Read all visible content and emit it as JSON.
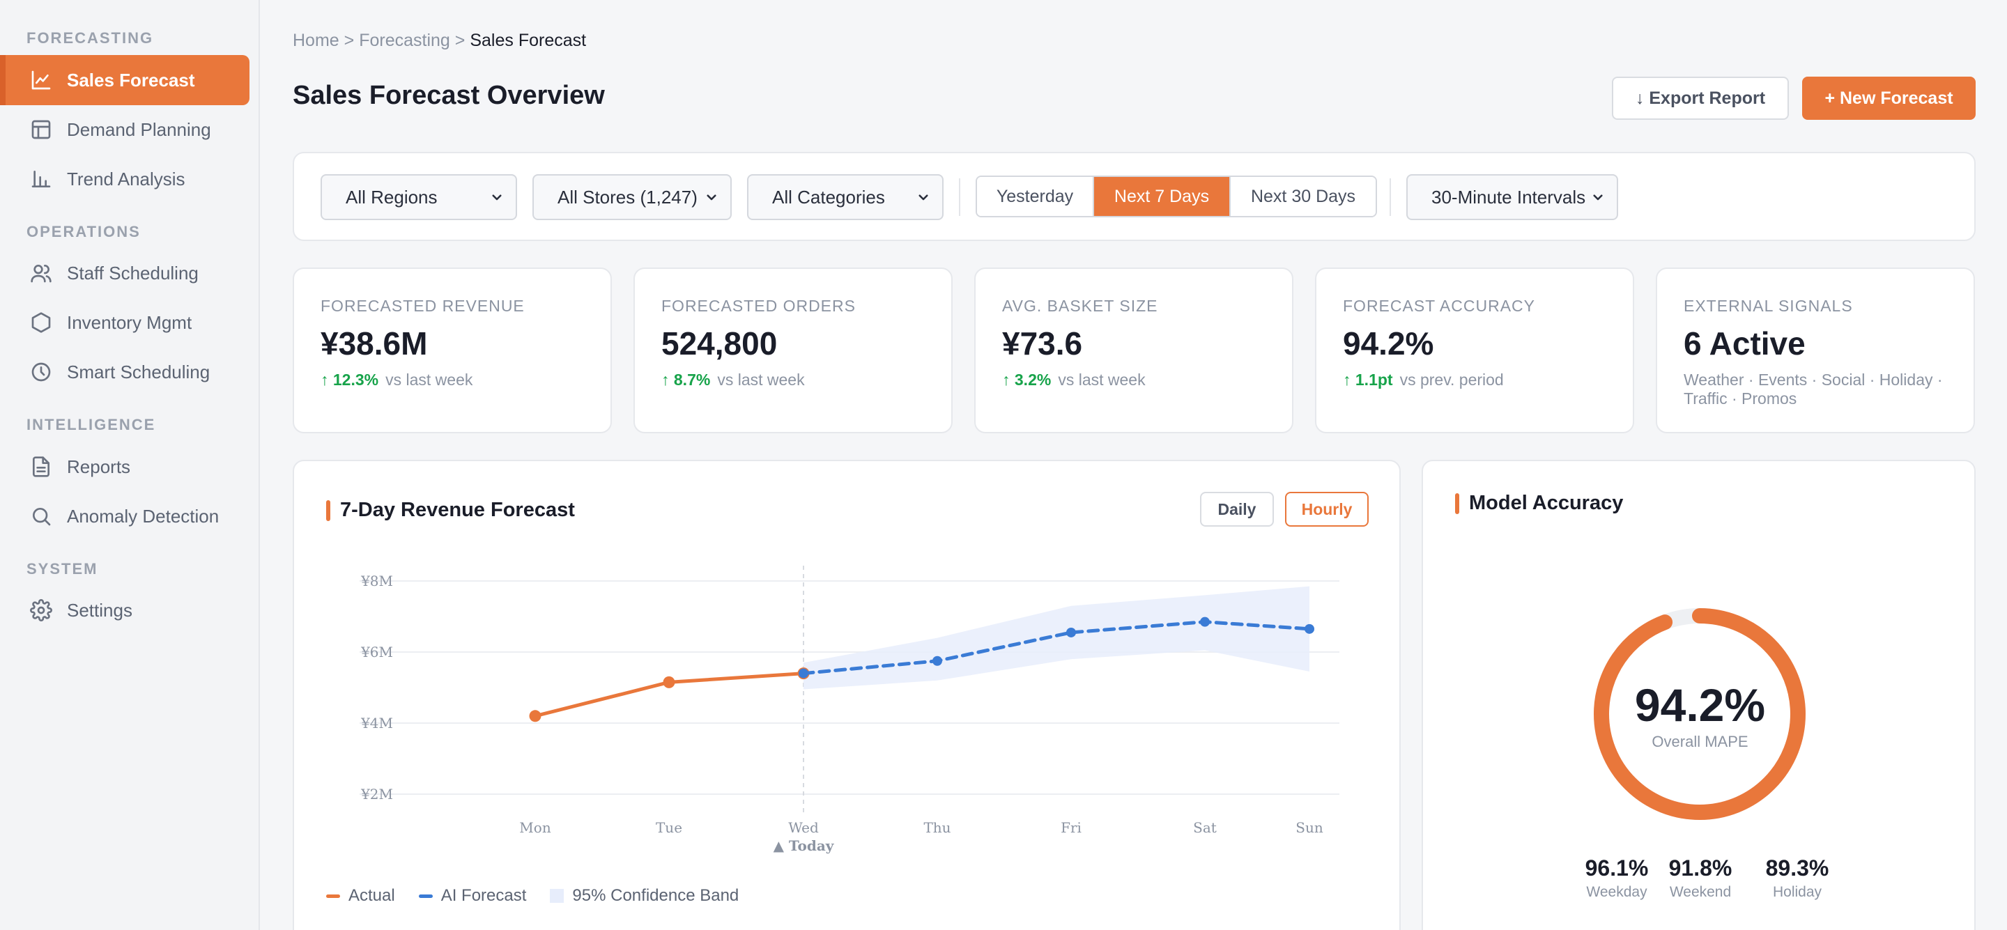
{
  "sidebar": {
    "sections": [
      {
        "label": "FORECASTING"
      },
      {
        "label": "OPERATIONS"
      },
      {
        "label": "INTELLIGENCE"
      },
      {
        "label": "SYSTEM"
      }
    ],
    "items": [
      {
        "label": "Sales Forecast",
        "icon": "line-chart-icon",
        "active": true
      },
      {
        "label": "Demand Planning",
        "icon": "grid-icon"
      },
      {
        "label": "Trend Analysis",
        "icon": "bar-chart-icon"
      },
      {
        "label": "Staff Scheduling",
        "icon": "users-icon"
      },
      {
        "label": "Inventory Mgmt",
        "icon": "box-icon"
      },
      {
        "label": "Smart Scheduling",
        "icon": "clock-icon"
      },
      {
        "label": "Reports",
        "icon": "document-icon"
      },
      {
        "label": "Anomaly Detection",
        "icon": "search-icon"
      },
      {
        "label": "Settings",
        "icon": "gear-icon"
      }
    ]
  },
  "breadcrumb": {
    "home": "Home",
    "sep": ">",
    "section": "Forecasting",
    "current": "Sales Forecast"
  },
  "header": {
    "title": "Sales Forecast Overview",
    "export_label": "↓ Export Report",
    "new_label": "+ New Forecast"
  },
  "filters": {
    "region": "All Regions",
    "stores": "All Stores (1,247)",
    "categories": "All Categories",
    "ranges": [
      "Yesterday",
      "Next 7 Days",
      "Next 30 Days"
    ],
    "active_range": "Next 7 Days",
    "interval": "30-Minute Intervals"
  },
  "kpis": [
    {
      "label": "FORECASTED REVENUE",
      "value": "¥38.6M",
      "change": "↑ 12.3%",
      "period": "vs last week"
    },
    {
      "label": "FORECASTED ORDERS",
      "value": "524,800",
      "change": "↑ 8.7%",
      "period": "vs last week"
    },
    {
      "label": "AVG. BASKET SIZE",
      "value": "¥73.6",
      "change": "↑ 3.2%",
      "period": "vs last week"
    },
    {
      "label": "FORECAST ACCURACY",
      "value": "94.2%",
      "change": "↑ 1.1pt",
      "period": "vs prev. period"
    },
    {
      "label": "EXTERNAL SIGNALS",
      "value": "6 Active",
      "detail": "Weather · Events · Social · Holiday · Traffic · Promos"
    }
  ],
  "revenue_chart": {
    "title": "7-Day Revenue Forecast",
    "daily_label": "Daily",
    "hourly_label": "Hourly",
    "today_label": "▲ Today",
    "legend": {
      "actual": "Actual",
      "forecast": "AI Forecast",
      "band": "95% Confidence Band"
    }
  },
  "chart_data": {
    "type": "line",
    "categories": [
      "Mon",
      "Tue",
      "Wed",
      "Thu",
      "Fri",
      "Sat",
      "Sun"
    ],
    "ylim": [
      2,
      8
    ],
    "yticks": [
      2,
      4,
      6,
      8
    ],
    "ytick_labels": [
      "¥2M",
      "¥4M",
      "¥6M",
      "¥8M"
    ],
    "series": [
      {
        "name": "Actual",
        "values": [
          4.2,
          5.15,
          5.4,
          null,
          null,
          null,
          null
        ],
        "color": "#e9773b",
        "style": "solid"
      },
      {
        "name": "AI Forecast",
        "values": [
          null,
          null,
          5.4,
          5.75,
          6.55,
          6.85,
          6.65
        ],
        "color": "#3a7bd5",
        "style": "dashed"
      }
    ],
    "band": {
      "name": "95% Confidence Band",
      "lower": [
        null,
        null,
        4.95,
        5.2,
        5.8,
        6.05,
        5.45
      ],
      "upper": [
        null,
        null,
        5.7,
        6.4,
        7.3,
        7.6,
        7.85
      ],
      "color": "#e7edfb"
    },
    "today_index": 2,
    "grid": true,
    "legend_position": "bottom-left"
  },
  "accuracy": {
    "title": "Model Accuracy",
    "value": "94.2%",
    "fraction": 0.942,
    "caption": "Overall MAPE",
    "stats": [
      {
        "value": "96.1%",
        "label": "Weekday"
      },
      {
        "value": "91.8%",
        "label": "Weekend"
      },
      {
        "value": "89.3%",
        "label": "Holiday"
      }
    ],
    "color": "#e9773b"
  }
}
